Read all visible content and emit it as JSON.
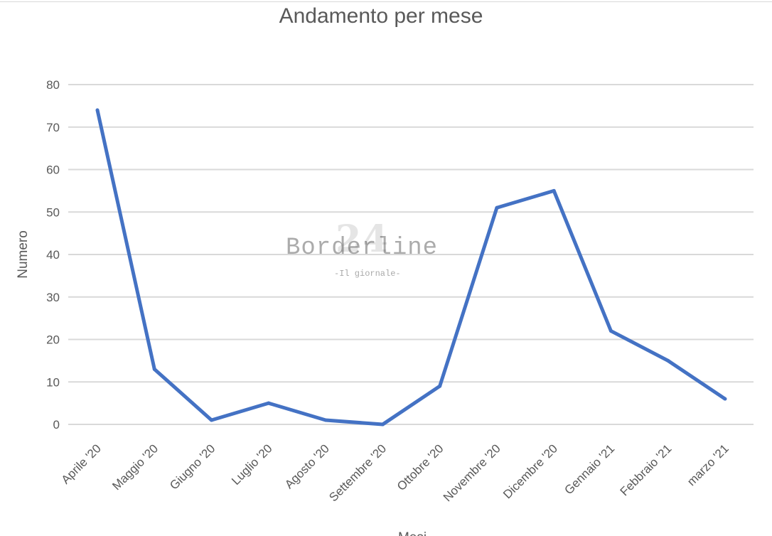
{
  "chart_data": {
    "type": "line",
    "title": "Andamento per mese",
    "xlabel": "Mesi",
    "ylabel": "Numero",
    "categories": [
      "Aprile '20",
      "Maggio '20",
      "Giugno '20",
      "Luglio '20",
      "Agosto '20",
      "Settembre '20",
      "Ottobre '20",
      "Novembre '20",
      "Dicembre '20",
      "Gennaio '21",
      "Febbraio '21",
      "marzo '21"
    ],
    "series": [
      {
        "values": [
          74,
          13,
          1,
          5,
          1,
          0,
          9,
          51,
          55,
          22,
          15,
          6
        ]
      }
    ],
    "ylim": [
      0,
      80
    ],
    "yticks": [
      0,
      10,
      20,
      30,
      40,
      50,
      60,
      70,
      80
    ],
    "grid": true,
    "legend": "none",
    "colors": {
      "line": "#4472c4",
      "grid": "#d9d9d9",
      "text": "#595959"
    }
  },
  "watermark": {
    "number": "24",
    "name": "Borderline",
    "subtitle": "-Il giornale-"
  }
}
